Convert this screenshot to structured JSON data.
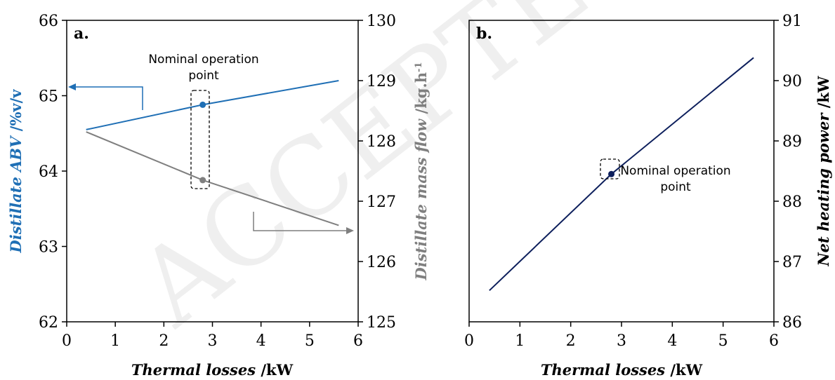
{
  "watermark": "ACCEPTED MANUSCRIPT",
  "colors": {
    "abv": "#1f6fb5",
    "mass": "#7f7f7f",
    "power": "#0d1f5c",
    "axis": "#000000"
  },
  "chart_data": [
    {
      "type": "line",
      "panel_label": "a.",
      "x": [
        0.4,
        2.8,
        5.6
      ],
      "xlabel": {
        "italic": "Thermal losses",
        "unit": " /kW"
      },
      "xlim": [
        0,
        6
      ],
      "xticks": [
        0,
        1,
        2,
        3,
        4,
        5,
        6
      ],
      "series": [
        {
          "axis": "left",
          "values": [
            64.55,
            64.88,
            65.2
          ],
          "marker_index": 1,
          "color": "#1f6fb5"
        },
        {
          "axis": "right",
          "values": [
            128.15,
            127.35,
            126.6
          ],
          "marker_index": 1,
          "color": "#7f7f7f"
        }
      ],
      "ylabel_left": {
        "italic": "Distillate ABV",
        "unit": " /%v/v"
      },
      "ylim_left": [
        62,
        66
      ],
      "yticks_left": [
        62,
        63,
        64,
        65,
        66
      ],
      "ylabel_right": {
        "italic": "Distillate mass flow",
        "unit": " /kg.h",
        "sup": "-1"
      },
      "ylim_right": [
        125,
        130
      ],
      "yticks_right": [
        125,
        126,
        127,
        128,
        129,
        130
      ],
      "annotation": {
        "text_lines": [
          "Nominal operation",
          "point"
        ]
      }
    },
    {
      "type": "line",
      "panel_label": "b.",
      "x": [
        0.4,
        2.8,
        5.6
      ],
      "xlabel": {
        "italic": "Thermal losses",
        "unit": " /kW"
      },
      "xlim": [
        0,
        6
      ],
      "xticks": [
        0,
        1,
        2,
        3,
        4,
        5,
        6
      ],
      "series": [
        {
          "axis": "right",
          "values": [
            86.52,
            88.45,
            90.38
          ],
          "marker_index": 1,
          "color": "#0d1f5c"
        }
      ],
      "ylabel_right": {
        "italic": "Net heating power",
        "unit": " /kW"
      },
      "ylim_right": [
        86,
        91
      ],
      "yticks_right": [
        86,
        87,
        88,
        89,
        90,
        91
      ],
      "annotation": {
        "text_lines": [
          "Nominal operation",
          "point"
        ]
      }
    }
  ]
}
